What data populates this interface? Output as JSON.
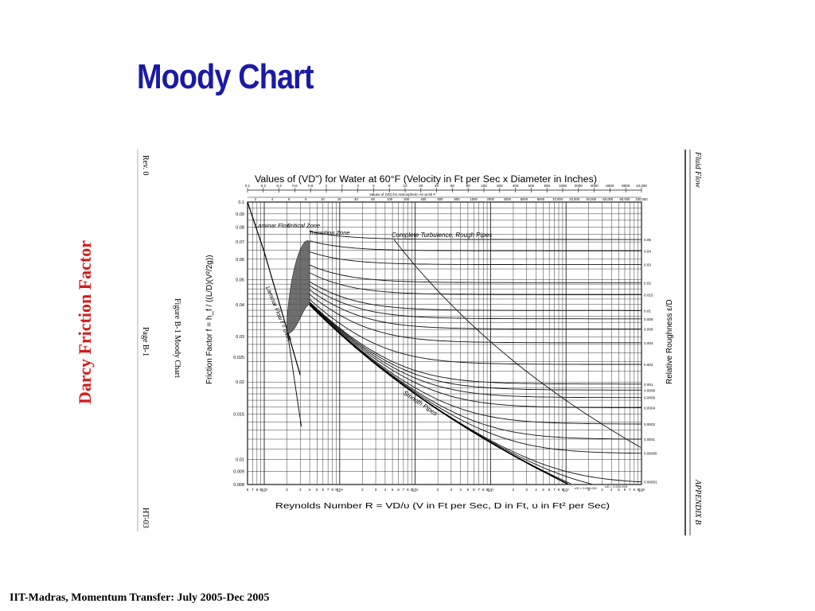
{
  "slide": {
    "title": "Moody Chart",
    "side_label": "Darcy Friction Factor",
    "footer": "IIT-Madras, Momentum Transfer: July 2005-Dec 2005"
  },
  "scan": {
    "rev": "Rev. 0",
    "page": "Page B-1",
    "doc_id": "HT-03",
    "figure_caption": "Figure B-1  Moody Chart",
    "book_title": "Fluid Flow",
    "appendix": "APPENDIX B"
  },
  "chart_data": {
    "type": "line",
    "title": "Values of (VD\") for Water at 60°F (Velocity in Ft per Sec x Diameter in Inches)",
    "top_scale_ticks": [
      "0.1",
      "0.2",
      "0.4",
      "0.6",
      "0.8",
      "1",
      "2",
      "4",
      "6",
      "8",
      "10",
      "20",
      "40",
      "60",
      "80",
      "100",
      "200",
      "400",
      "600",
      "800",
      "1000",
      "2000",
      "4000",
      "6000",
      "8000",
      "10,000"
    ],
    "top_scale_atm_label": "Values of (VD) for Atmospheric Air at 60 F",
    "top_scale_atm_ticks": [
      "2",
      "4",
      "6",
      "8",
      "10",
      "20",
      "40",
      "60",
      "100",
      "200",
      "400",
      "600",
      "800",
      "1000",
      "2000",
      "4000",
      "6000",
      "8000",
      "10,000",
      "20,000",
      "40,000",
      "60,000",
      "80,000",
      "100,000"
    ],
    "xlabel": "Reynolds Number  R = VD/υ   (V in Ft per Sec, D in Ft, υ in Ft² per Sec)",
    "ylabel": "Friction Factor  f = h_f / ((L/D)(V²/2g))",
    "ylabel_right": "Relative Roughness  ε/D",
    "x_scale": "log",
    "y_scale": "log",
    "xlim": [
      600,
      100000000
    ],
    "ylim": [
      0.008,
      0.1
    ],
    "x_decade_labels": [
      "10³",
      "10⁴",
      "10⁵",
      "10⁶",
      "10⁷",
      "10⁸"
    ],
    "y_ticks": [
      "0.1",
      "0.09",
      "0.08",
      "0.07",
      "0.06",
      "0.05",
      "0.04",
      "0.03",
      "0.025",
      "0.02",
      "0.015",
      "0.01",
      "0.009",
      "0.008"
    ],
    "rr_labels": [
      "0.05",
      "0.04",
      "0.03",
      "0.02",
      "0.015",
      "0.01",
      "0.008",
      "0.006",
      "0.004",
      "0.002",
      "0.001",
      "0.0008",
      "0.0006",
      "0.0004",
      "0.0002",
      "0.0001",
      "0.00005",
      "0.00001"
    ],
    "bottom_rr_labels": [
      "ε/D = 0.000,001",
      "ε/D = 0.000,005"
    ],
    "zone_labels": [
      "Laminar Flow",
      "Critical Zone",
      "Transition Zone",
      "Complete Turbulence, Rough Pipes",
      "Smooth Pipes",
      "Laminar Flow f = 64/R"
    ],
    "series": [
      {
        "name": "Laminar Flow f = 64/R",
        "x": [
          600,
          1000,
          2000,
          3000
        ],
        "y": [
          0.1067,
          0.064,
          0.032,
          0.0213
        ]
      },
      {
        "name": "Smooth Pipes",
        "x": [
          4000,
          10000,
          100000,
          1000000,
          10000000,
          100000000
        ],
        "y": [
          0.0399,
          0.0309,
          0.018,
          0.0116,
          0.0081,
          0.0059
        ]
      }
    ],
    "rough_curves_rr": [
      0.05,
      0.04,
      0.03,
      0.02,
      0.015,
      0.01,
      0.008,
      0.006,
      0.004,
      0.002,
      0.001,
      0.0008,
      0.0006,
      0.0004,
      0.0002,
      0.0001,
      5e-05,
      1e-05,
      5e-06,
      1e-06
    ],
    "grid": true
  }
}
